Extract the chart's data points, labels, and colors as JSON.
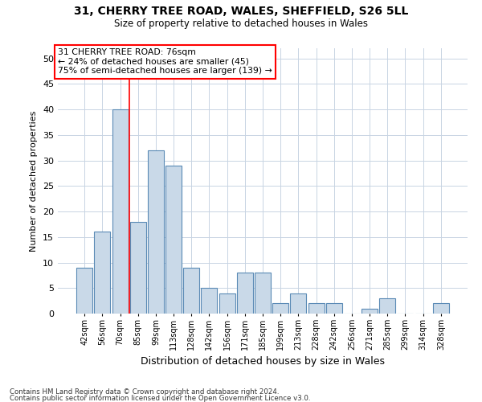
{
  "title1": "31, CHERRY TREE ROAD, WALES, SHEFFIELD, S26 5LL",
  "title2": "Size of property relative to detached houses in Wales",
  "xlabel": "Distribution of detached houses by size in Wales",
  "ylabel": "Number of detached properties",
  "categories": [
    "42sqm",
    "56sqm",
    "70sqm",
    "85sqm",
    "99sqm",
    "113sqm",
    "128sqm",
    "142sqm",
    "156sqm",
    "171sqm",
    "185sqm",
    "199sqm",
    "213sqm",
    "228sqm",
    "242sqm",
    "256sqm",
    "271sqm",
    "285sqm",
    "299sqm",
    "314sqm",
    "328sqm"
  ],
  "values": [
    9,
    16,
    40,
    18,
    32,
    29,
    9,
    5,
    4,
    8,
    8,
    2,
    4,
    2,
    2,
    0,
    1,
    3,
    0,
    0,
    2
  ],
  "bar_color": "#c9d9e8",
  "bar_edge_color": "#5a8ab5",
  "red_line_index": 2,
  "annotation_text_line1": "31 CHERRY TREE ROAD: 76sqm",
  "annotation_text_line2": "← 24% of detached houses are smaller (45)",
  "annotation_text_line3": "75% of semi-detached houses are larger (139) →",
  "ylim": [
    0,
    52
  ],
  "yticks": [
    0,
    5,
    10,
    15,
    20,
    25,
    30,
    35,
    40,
    45,
    50
  ],
  "footer1": "Contains HM Land Registry data © Crown copyright and database right 2024.",
  "footer2": "Contains public sector information licensed under the Open Government Licence v3.0.",
  "bg_color": "#ffffff",
  "grid_color": "#c8d4e3"
}
